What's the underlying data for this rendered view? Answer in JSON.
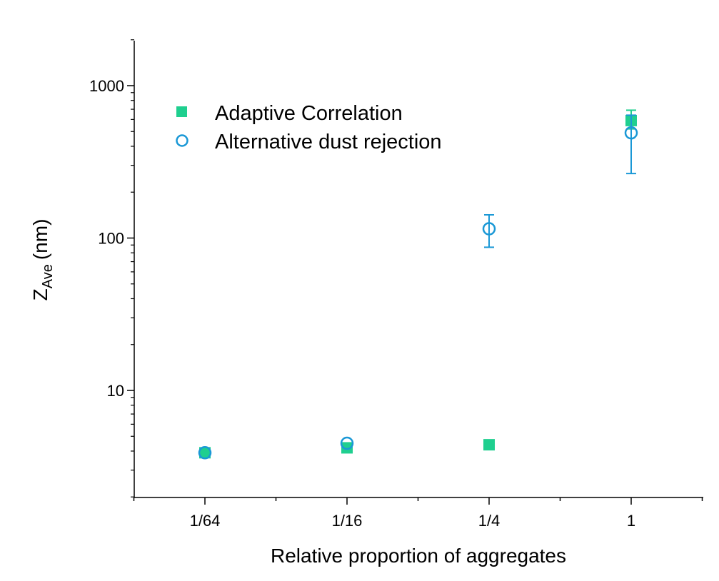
{
  "chart_data": {
    "type": "scatter",
    "xlabel": "Relative proportion of aggregates",
    "ylabel_main": "Z",
    "ylabel_sub": "Ave",
    "ylabel_unit": "(nm)",
    "yscale": "log",
    "ylim": [
      2,
      2000
    ],
    "x_ticks": [
      "1/64",
      "1/16",
      "1/4",
      "1"
    ],
    "y_ticks": [
      "10",
      "100",
      "1000"
    ],
    "legend_position": "top-left",
    "series": [
      {
        "name": "Adaptive Correlation",
        "marker": "filled-square",
        "color": "#1fcf8f",
        "points": [
          {
            "x": "1/64",
            "y": 3.9
          },
          {
            "x": "1/16",
            "y": 4.2
          },
          {
            "x": "1/4",
            "y": 4.4
          },
          {
            "x": "1",
            "y": 590,
            "err_low": 520,
            "err_high": 690
          }
        ]
      },
      {
        "name": "Alternative dust rejection",
        "marker": "open-circle",
        "color": "#1a98d6",
        "points": [
          {
            "x": "1/64",
            "y": 3.9
          },
          {
            "x": "1/16",
            "y": 4.5
          },
          {
            "x": "1/4",
            "y": 115,
            "err_low": 87,
            "err_high": 142
          },
          {
            "x": "1",
            "y": 490,
            "err_low": 265,
            "err_high": 640
          }
        ]
      }
    ]
  }
}
